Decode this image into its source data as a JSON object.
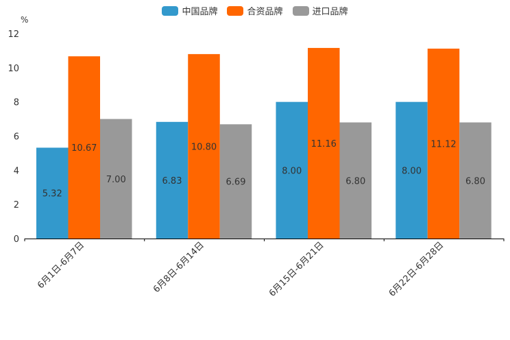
{
  "chart_data": {
    "type": "bar",
    "title": "",
    "xlabel": "",
    "ylabel": "%",
    "ylim": [
      0,
      12
    ],
    "yticks": [
      "0",
      "2",
      "4",
      "6",
      "8",
      "10",
      "12"
    ],
    "categories": [
      "6月1日-6月7日",
      "6月8日-6月14日",
      "6月15日-6月21日",
      "6月22日-6月28日"
    ],
    "series": [
      {
        "name": "中国品牌",
        "color": "#3399cc",
        "values": [
          5.32,
          6.83,
          8.0,
          8.0
        ],
        "labels": [
          "5.32",
          "6.83",
          "8.00",
          "8.00"
        ]
      },
      {
        "name": "合资品牌",
        "color": "#ff6600",
        "values": [
          10.67,
          10.8,
          11.16,
          11.12
        ],
        "labels": [
          "10.67",
          "10.80",
          "11.16",
          "11.12"
        ]
      },
      {
        "name": "进口品牌",
        "color": "#999999",
        "values": [
          7.0,
          6.69,
          6.8,
          6.8
        ],
        "labels": [
          "7.00",
          "6.69",
          "6.80",
          "6.80"
        ]
      }
    ],
    "legend_position": "top-center",
    "grid": false
  }
}
